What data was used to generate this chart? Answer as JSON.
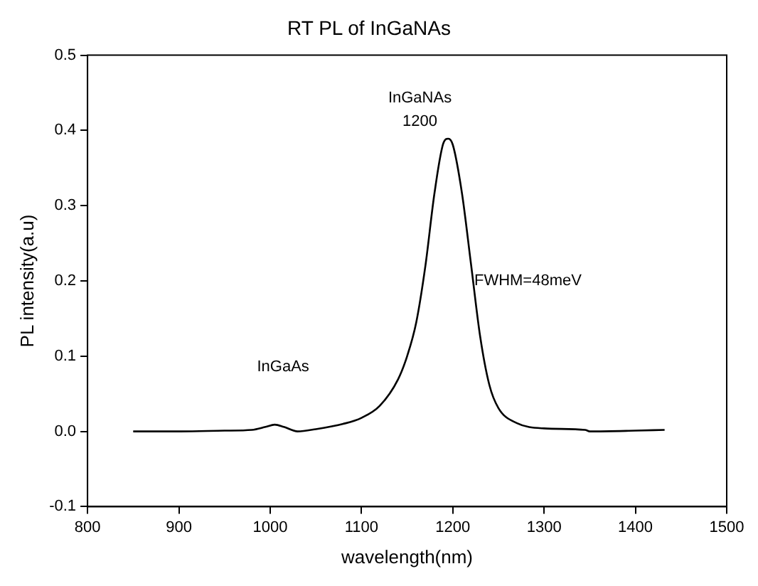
{
  "chart_data": {
    "type": "line",
    "title": "RT PL of InGaNAs",
    "xlabel": "wavelength(nm)",
    "ylabel": "PL intensity(a.u)",
    "x": [
      850,
      900,
      950,
      980,
      995,
      1005,
      1015,
      1030,
      1050,
      1080,
      1100,
      1120,
      1140,
      1150,
      1160,
      1170,
      1180,
      1190,
      1195,
      1200,
      1210,
      1220,
      1230,
      1240,
      1250,
      1270,
      1300,
      1345,
      1350,
      1400,
      1432
    ],
    "series": [
      {
        "color": "#000000",
        "values": [
          0.0,
          0.0,
          0.001,
          0.002,
          0.006,
          0.009,
          0.006,
          0.0,
          0.003,
          0.01,
          0.018,
          0.034,
          0.069,
          0.1,
          0.145,
          0.22,
          0.317,
          0.384,
          0.389,
          0.381,
          0.317,
          0.222,
          0.126,
          0.062,
          0.031,
          0.011,
          0.004,
          0.002,
          0.0,
          0.001,
          0.002
        ]
      }
    ],
    "xlim": [
      800,
      1500
    ],
    "xticks": [
      800,
      900,
      1000,
      1100,
      1200,
      1300,
      1400,
      1500
    ],
    "ylim": [
      -0.1,
      0.5
    ],
    "yticks": [
      {
        "value": -0.1,
        "label": "-0.1"
      },
      {
        "value": 0,
        "label": "0.0"
      },
      {
        "value": 0.1,
        "label": "0.1"
      },
      {
        "value": 0.2,
        "label": "0.2"
      },
      {
        "value": 0.3,
        "label": "0.3"
      },
      {
        "value": 0.4,
        "label": "0.4"
      },
      {
        "value": 0.5,
        "label": "0.5"
      }
    ],
    "grid": false,
    "legend": false,
    "marker": "none",
    "line_style": "solid",
    "annotations": [
      "InGaNAs",
      "1200",
      "FWHM=48meV",
      "InGaAs"
    ]
  }
}
